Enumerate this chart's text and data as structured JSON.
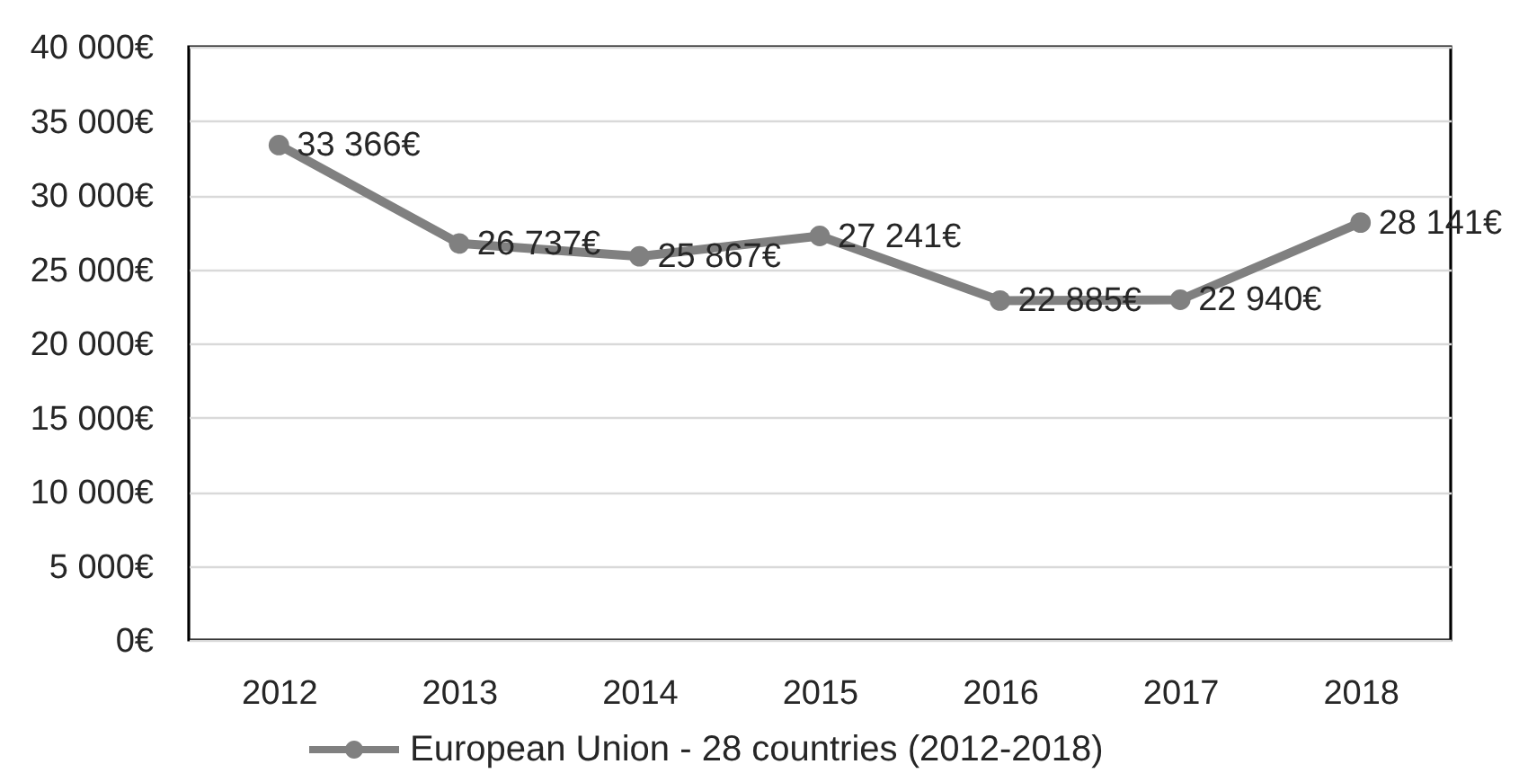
{
  "chart_data": {
    "type": "line",
    "categories": [
      "2012",
      "2013",
      "2014",
      "2015",
      "2016",
      "2017",
      "2018"
    ],
    "series": [
      {
        "name": "European Union - 28 countries (2012-2018)",
        "color": "#808080",
        "values": [
          33366,
          26737,
          25867,
          27241,
          22885,
          22940,
          28141
        ],
        "value_labels": [
          "33 366€",
          "26 737€",
          "25 867€",
          "27 241€",
          "22 885€",
          "22 940€",
          "28 141€"
        ]
      }
    ],
    "ylim": [
      0,
      40000
    ],
    "yticks": [
      {
        "value": 0,
        "label": "0€"
      },
      {
        "value": 5000,
        "label": "5 000€"
      },
      {
        "value": 10000,
        "label": "10 000€"
      },
      {
        "value": 15000,
        "label": "15 000€"
      },
      {
        "value": 20000,
        "label": "20 000€"
      },
      {
        "value": 25000,
        "label": "25 000€"
      },
      {
        "value": 30000,
        "label": "30 000€"
      },
      {
        "value": 35000,
        "label": "35 000€"
      },
      {
        "value": 40000,
        "label": "40 000€"
      }
    ],
    "grid": "y",
    "legend": "bottom",
    "marker": "circle",
    "line_style": "solid"
  }
}
